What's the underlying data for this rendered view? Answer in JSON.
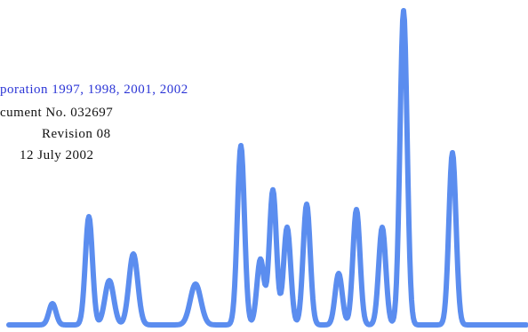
{
  "cover": {
    "copyright_fragment": "poration  1997,  1998,  2001,  2002",
    "document_fragment": "cument  No.  032697",
    "revision": "Revision  08",
    "date": "12  July  2002"
  },
  "colors": {
    "peak_trace": "#5b8def",
    "copyright_text": "#2b35d6",
    "body_text": "#111111",
    "background": "#ffffff"
  }
}
